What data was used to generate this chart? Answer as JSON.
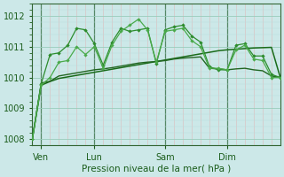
{
  "xlabel": "Pression niveau de la mer( hPa )",
  "bg_color": "#cce8e8",
  "grid_color_major": "#99ccbb",
  "grid_color_minor": "#bbdddd",
  "minor_vline_color": "#ddbbbb",
  "day_vline_color": "#558866",
  "ylim": [
    1007.8,
    1012.4
  ],
  "xlim": [
    0,
    28
  ],
  "yticks": [
    1008,
    1009,
    1010,
    1011,
    1012
  ],
  "xtick_positions": [
    1,
    7,
    15,
    22
  ],
  "xtick_labels": [
    "Ven",
    "Lun",
    "Sam",
    "Dim"
  ],
  "vline_positions": [
    1,
    7,
    15,
    22
  ],
  "lc1": "#1a6b1a",
  "lc2": "#2d8c2d",
  "lc3": "#4aaa4a",
  "lc4": "#226622",
  "series1": {
    "x": [
      0,
      1,
      2,
      3,
      4,
      5,
      6,
      7,
      8,
      9,
      10,
      11,
      12,
      13,
      14,
      15,
      16,
      17,
      18,
      19,
      20,
      21,
      22,
      23,
      24,
      25,
      26,
      27,
      28
    ],
    "y": [
      1008.0,
      1009.75,
      1009.87,
      1009.97,
      1010.02,
      1010.07,
      1010.12,
      1010.17,
      1010.22,
      1010.27,
      1010.32,
      1010.37,
      1010.42,
      1010.47,
      1010.52,
      1010.57,
      1010.62,
      1010.67,
      1010.72,
      1010.77,
      1010.82,
      1010.87,
      1010.9,
      1010.92,
      1010.94,
      1010.96,
      1010.97,
      1010.98,
      1010.0
    ]
  },
  "series2": {
    "x": [
      0,
      1,
      2,
      3,
      4,
      5,
      6,
      7,
      8,
      9,
      10,
      11,
      12,
      13,
      14,
      15,
      16,
      17,
      18,
      19,
      20,
      21,
      22,
      23,
      24,
      25,
      26,
      27,
      28
    ],
    "y": [
      1008.0,
      1009.8,
      1010.75,
      1010.8,
      1011.05,
      1011.6,
      1011.55,
      1011.1,
      1010.4,
      1011.15,
      1011.6,
      1011.5,
      1011.55,
      1011.6,
      1010.45,
      1011.55,
      1011.65,
      1011.7,
      1011.35,
      1011.15,
      1010.35,
      1010.25,
      1010.25,
      1011.05,
      1011.1,
      1010.7,
      1010.7,
      1010.1,
      1010.0
    ]
  },
  "series3": {
    "x": [
      0,
      1,
      2,
      3,
      4,
      5,
      6,
      7,
      8,
      9,
      10,
      11,
      12,
      13,
      14,
      15,
      16,
      17,
      18,
      19,
      20,
      21,
      22,
      23,
      24,
      25,
      26,
      27,
      28
    ],
    "y": [
      1008.0,
      1009.75,
      1010.0,
      1010.5,
      1010.55,
      1011.0,
      1010.75,
      1011.0,
      1010.3,
      1011.05,
      1011.5,
      1011.7,
      1011.9,
      1011.55,
      1010.5,
      1011.5,
      1011.55,
      1011.6,
      1011.2,
      1011.0,
      1010.3,
      1010.3,
      1010.25,
      1010.9,
      1011.05,
      1010.6,
      1010.55,
      1010.0,
      1010.0
    ]
  },
  "series4": {
    "x": [
      0,
      1,
      2,
      3,
      4,
      5,
      6,
      7,
      8,
      9,
      10,
      11,
      12,
      13,
      14,
      15,
      16,
      17,
      18,
      19,
      20,
      21,
      22,
      23,
      24,
      25,
      26,
      27,
      28
    ],
    "y": [
      1008.0,
      1009.82,
      1009.88,
      1010.05,
      1010.1,
      1010.15,
      1010.2,
      1010.25,
      1010.28,
      1010.32,
      1010.37,
      1010.42,
      1010.47,
      1010.5,
      1010.52,
      1010.55,
      1010.6,
      1010.63,
      1010.65,
      1010.67,
      1010.3,
      1010.28,
      1010.25,
      1010.28,
      1010.3,
      1010.25,
      1010.22,
      1010.05,
      1010.0
    ]
  }
}
